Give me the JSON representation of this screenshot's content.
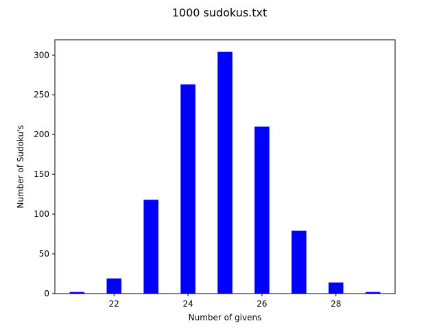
{
  "chart_data": {
    "type": "bar",
    "title": "1000 sudokus.txt",
    "xlabel": "Number of givens",
    "ylabel": "Number of Sudoku's",
    "x": [
      21,
      22,
      23,
      24,
      25,
      26,
      27,
      28,
      29
    ],
    "values": [
      2,
      19,
      118,
      263,
      304,
      210,
      79,
      14,
      2
    ],
    "bar_width": 0.4,
    "xlim": [
      20.4,
      29.6
    ],
    "ylim": [
      0,
      319.2
    ],
    "xticks": [
      22,
      24,
      26,
      28
    ],
    "yticks": [
      0,
      50,
      100,
      150,
      200,
      250,
      300
    ],
    "bar_color": "#0000ff",
    "grid": false,
    "legend": "none"
  }
}
